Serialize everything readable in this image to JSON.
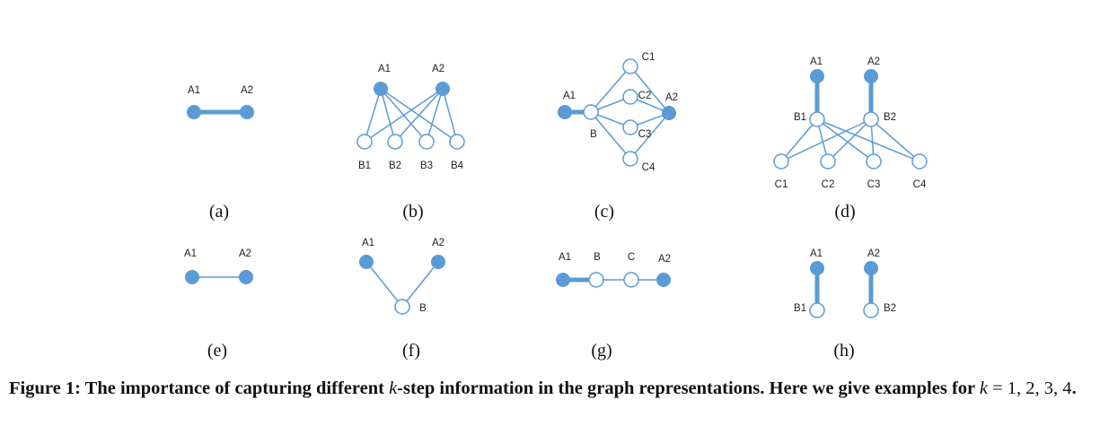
{
  "colors": {
    "accent": "#5b9bd5",
    "text": "#222222"
  },
  "panels": {
    "a": {
      "caption": "(a)",
      "labels": {
        "A1": "A1",
        "A2": "A2"
      }
    },
    "b": {
      "caption": "(b)",
      "labels": {
        "A1": "A1",
        "A2": "A2",
        "B1": "B1",
        "B2": "B2",
        "B3": "B3",
        "B4": "B4"
      }
    },
    "c": {
      "caption": "(c)",
      "labels": {
        "A1": "A1",
        "A2": "A2",
        "B": "B",
        "C1": "C1",
        "C2": "C2",
        "C3": "C3",
        "C4": "C4"
      }
    },
    "d": {
      "caption": "(d)",
      "labels": {
        "A1": "A1",
        "A2": "A2",
        "B1": "B1",
        "B2": "B2",
        "C1": "C1",
        "C2": "C2",
        "C3": "C3",
        "C4": "C4"
      }
    },
    "e": {
      "caption": "(e)",
      "labels": {
        "A1": "A1",
        "A2": "A2"
      }
    },
    "f": {
      "caption": "(f)",
      "labels": {
        "A1": "A1",
        "A2": "A2",
        "B": "B"
      }
    },
    "g": {
      "caption": "(g)",
      "labels": {
        "A1": "A1",
        "B": "B",
        "C": "C",
        "A2": "A2"
      }
    },
    "h": {
      "caption": "(h)",
      "labels": {
        "A1": "A1",
        "A2": "A2",
        "B1": "B1",
        "B2": "B2"
      }
    }
  },
  "caption": {
    "prefix": "Figure 1: The importance of capturing different ",
    "k_symbol": "k",
    "middle": "-step information in the graph representations. Here we give examples for ",
    "equals": " = 1, 2, 3, 4",
    "end": "."
  }
}
